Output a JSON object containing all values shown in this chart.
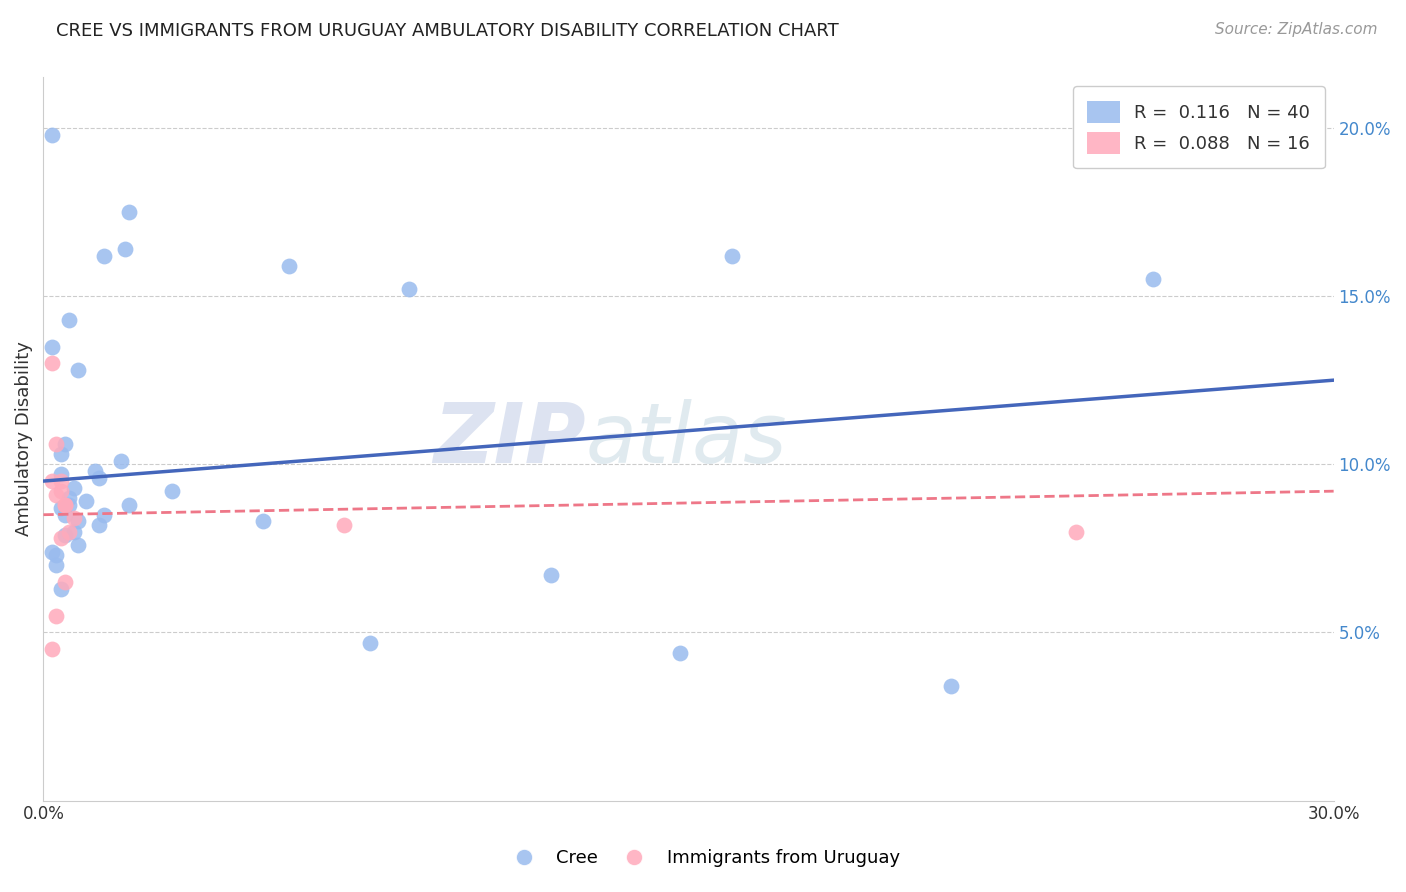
{
  "title": "CREE VS IMMIGRANTS FROM URUGUAY AMBULATORY DISABILITY CORRELATION CHART",
  "source": "Source: ZipAtlas.com",
  "ylabel": "Ambulatory Disability",
  "watermark_part1": "ZIP",
  "watermark_part2": "atlas",
  "xmin": 0.0,
  "xmax": 0.3,
  "ymin": 0.0,
  "ymax": 0.215,
  "yticks": [
    0.05,
    0.1,
    0.15,
    0.2
  ],
  "ytick_labels": [
    "5.0%",
    "10.0%",
    "15.0%",
    "20.0%"
  ],
  "cree_R": 0.116,
  "cree_N": 40,
  "uruguay_R": 0.088,
  "uruguay_N": 16,
  "cree_color": "#99BBEE",
  "uruguay_color": "#FFAABB",
  "line_color_cree": "#4466BB",
  "line_color_uruguay": "#EE7788",
  "cree_x": [
    0.002,
    0.02,
    0.014,
    0.019,
    0.002,
    0.006,
    0.008,
    0.005,
    0.004,
    0.004,
    0.007,
    0.006,
    0.01,
    0.006,
    0.004,
    0.005,
    0.014,
    0.008,
    0.013,
    0.007,
    0.005,
    0.008,
    0.002,
    0.003,
    0.003,
    0.004,
    0.258,
    0.085,
    0.051,
    0.076,
    0.118,
    0.057,
    0.16,
    0.211,
    0.148,
    0.012,
    0.013,
    0.018,
    0.02,
    0.03
  ],
  "cree_y": [
    0.198,
    0.175,
    0.162,
    0.164,
    0.135,
    0.143,
    0.128,
    0.106,
    0.103,
    0.097,
    0.093,
    0.09,
    0.089,
    0.088,
    0.087,
    0.085,
    0.085,
    0.083,
    0.082,
    0.08,
    0.079,
    0.076,
    0.074,
    0.073,
    0.07,
    0.063,
    0.155,
    0.152,
    0.083,
    0.047,
    0.067,
    0.159,
    0.162,
    0.034,
    0.044,
    0.098,
    0.096,
    0.101,
    0.088,
    0.092
  ],
  "uruguay_x": [
    0.002,
    0.002,
    0.003,
    0.004,
    0.005,
    0.003,
    0.004,
    0.005,
    0.006,
    0.007,
    0.002,
    0.003,
    0.004,
    0.005,
    0.24,
    0.07
  ],
  "uruguay_y": [
    0.045,
    0.13,
    0.055,
    0.078,
    0.065,
    0.106,
    0.092,
    0.088,
    0.08,
    0.084,
    0.095,
    0.091,
    0.095,
    0.088,
    0.08,
    0.082
  ],
  "background_color": "#FFFFFF",
  "grid_color": "#CCCCCC",
  "title_fontsize": 13,
  "source_fontsize": 11,
  "tick_fontsize": 12,
  "legend_fontsize": 13
}
